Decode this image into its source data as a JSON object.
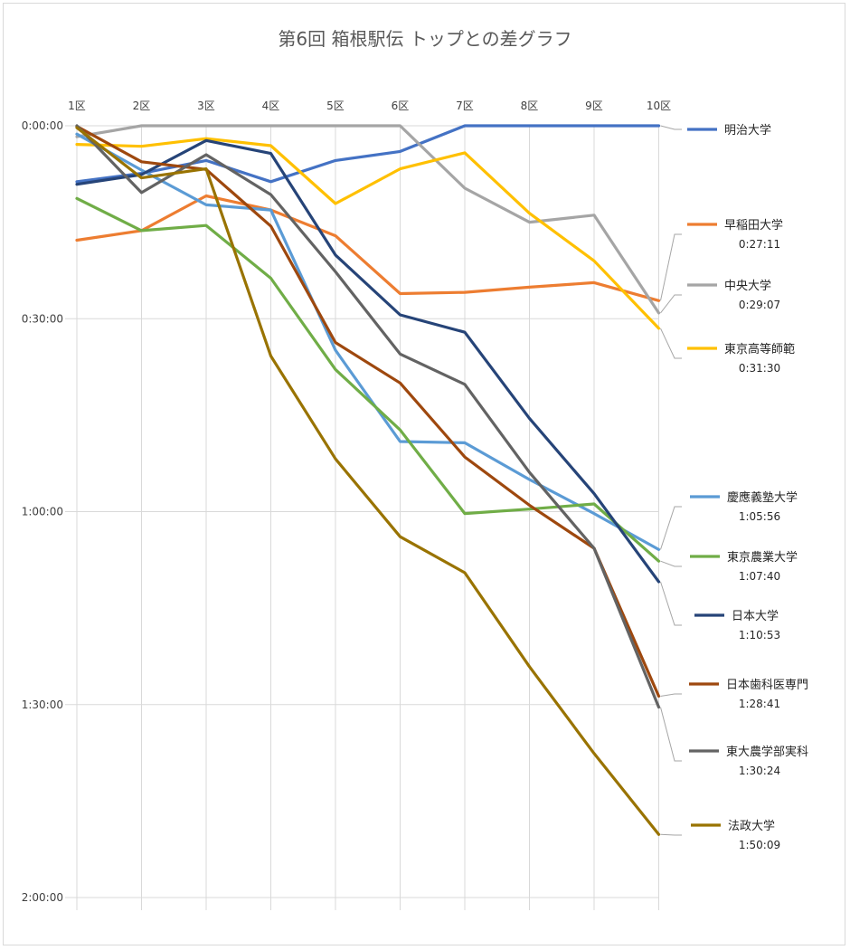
{
  "chart_data": {
    "type": "line",
    "title": "第6回 箱根駅伝 トップとの差グラフ",
    "categories": [
      "1区",
      "2区",
      "3区",
      "4区",
      "5区",
      "6区",
      "7区",
      "8区",
      "9区",
      "10区"
    ],
    "y_unit": "minutes behind leader",
    "y_ticks": [
      "0:00:00",
      "0:30:00",
      "1:00:00",
      "1:30:00",
      "2:00:00"
    ],
    "ylim": [
      0,
      120
    ],
    "y_reversed": true,
    "grid": true,
    "legend_position": "right",
    "series": [
      {
        "name": "明治大学",
        "color": "#4472c4",
        "values": [
          8.7,
          7.4,
          5.4,
          8.7,
          5.4,
          4.0,
          0,
          0,
          0,
          0
        ]
      },
      {
        "name": "早稲田大学",
        "color": "#ed7d31",
        "values": [
          17.8,
          16.3,
          10.9,
          13.1,
          17.1,
          26.1,
          25.9,
          25.1,
          24.4,
          27.2
        ],
        "time": "0:27:11"
      },
      {
        "name": "中央大学",
        "color": "#a5a5a5",
        "values": [
          1.7,
          0,
          0,
          0,
          0,
          0,
          9.7,
          15.0,
          13.9,
          29.1
        ],
        "time": "0:29:07"
      },
      {
        "name": "東京高等師範",
        "color": "#ffc000",
        "values": [
          2.9,
          3.2,
          2.0,
          3.1,
          12.1,
          6.7,
          4.2,
          13.6,
          21.0,
          31.5
        ],
        "time": "0:31:30"
      },
      {
        "name": "慶應義塾大学",
        "color": "#5b9bd5",
        "values": [
          1.3,
          6.9,
          12.3,
          13.1,
          34.9,
          49.1,
          49.3,
          55.0,
          60.3,
          65.9
        ],
        "time": "1:05:56"
      },
      {
        "name": "東京農業大学",
        "color": "#70ad47",
        "values": [
          11.3,
          16.3,
          15.5,
          23.7,
          37.9,
          47.3,
          60.3,
          59.6,
          58.8,
          67.7
        ],
        "time": "1:07:40"
      },
      {
        "name": "日本大学",
        "color": "#264478",
        "values": [
          9.1,
          7.6,
          2.3,
          4.3,
          20.1,
          29.4,
          32.1,
          45.5,
          57.2,
          70.9
        ],
        "time": "1:10:53"
      },
      {
        "name": "日本歯科医専門",
        "color": "#9e480e",
        "values": [
          0.1,
          5.6,
          6.8,
          15.6,
          33.7,
          40.0,
          51.5,
          59.0,
          65.7,
          88.7
        ],
        "time": "1:28:41"
      },
      {
        "name": "東大農学部実科",
        "color": "#636363",
        "values": [
          0,
          10.4,
          4.5,
          10.7,
          22.7,
          35.5,
          40.2,
          53.9,
          65.7,
          90.4
        ],
        "time": "1:30:24"
      },
      {
        "name": "法政大学",
        "color": "#997300",
        "values": [
          0.3,
          8.1,
          6.7,
          35.8,
          51.8,
          63.9,
          69.5,
          84.1,
          97.6,
          110.2
        ],
        "time": "1:50:09"
      }
    ]
  }
}
